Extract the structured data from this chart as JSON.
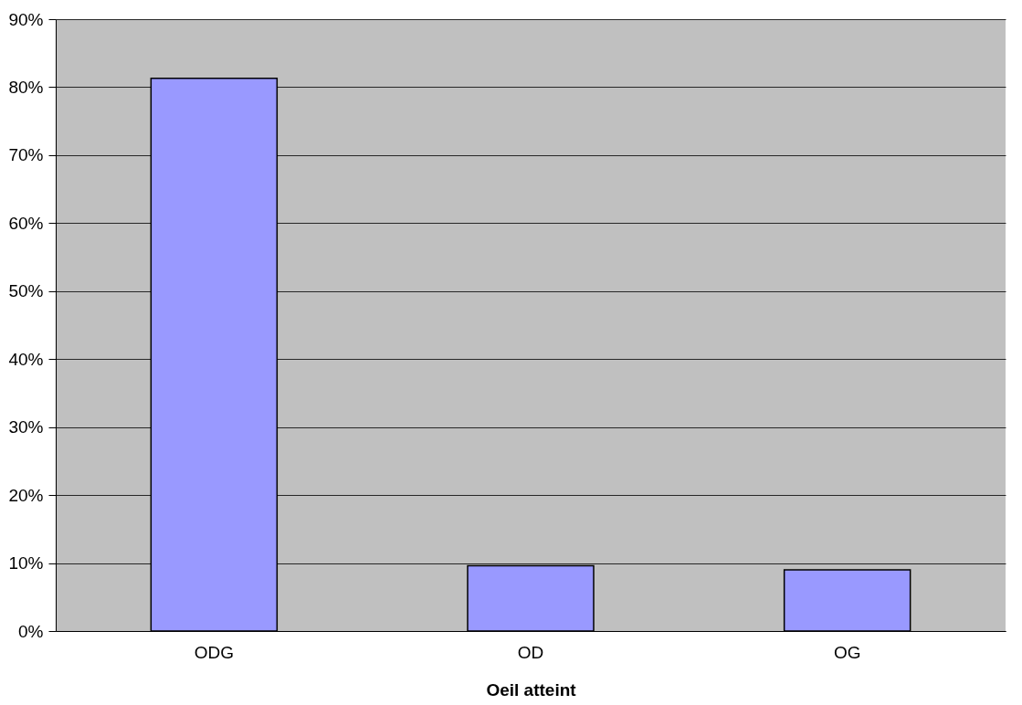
{
  "chart_data": {
    "type": "bar",
    "xlabel": "Oeil atteint",
    "categories": [
      "ODG",
      "OD",
      "OG"
    ],
    "values": [
      81.3,
      9.6,
      9.0
    ],
    "color": "#9999ff",
    "ylim": [
      0,
      90
    ],
    "yticks": [
      {
        "value": 0,
        "label": "0%"
      },
      {
        "value": 10,
        "label": "10%"
      },
      {
        "value": 20,
        "label": "20%"
      },
      {
        "value": 30,
        "label": "30%"
      },
      {
        "value": 40,
        "label": "40%"
      },
      {
        "value": 50,
        "label": "50%"
      },
      {
        "value": 60,
        "label": "60%"
      },
      {
        "value": 70,
        "label": "70%"
      },
      {
        "value": 80,
        "label": "80%"
      },
      {
        "value": 90,
        "label": "90%"
      }
    ],
    "grid": "y"
  }
}
